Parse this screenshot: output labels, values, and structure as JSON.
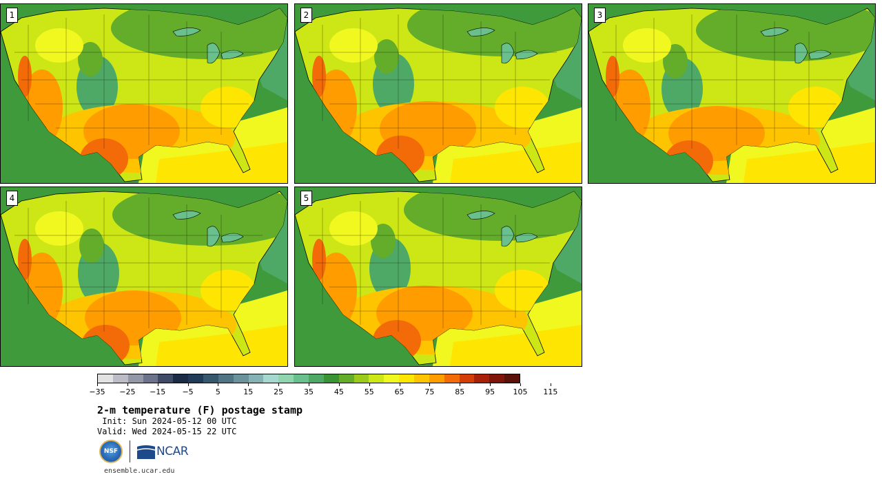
{
  "panels": [
    {
      "label": "1",
      "id": "p1",
      "variant": 0
    },
    {
      "label": "2",
      "id": "p2",
      "variant": 1
    },
    {
      "label": "3",
      "id": "p3",
      "variant": 2
    },
    {
      "label": "4",
      "id": "p4",
      "variant": 3
    },
    {
      "label": "5",
      "id": "p5",
      "variant": 4
    }
  ],
  "colorbar": {
    "colors": [
      "#e2e2e2",
      "#bcbcc6",
      "#9397a6",
      "#6b7289",
      "#3f4b66",
      "#1a2b45",
      "#1f3b57",
      "#36586c",
      "#4f7585",
      "#69929b",
      "#85b3b3",
      "#a5d9cf",
      "#8ed5b0",
      "#6ac08c",
      "#4fa966",
      "#3a9436",
      "#63ad2a",
      "#9acb1a",
      "#cde716",
      "#f1f820",
      "#ffe602",
      "#ffc400",
      "#ff9c00",
      "#f36a08",
      "#d43c08",
      "#a82008",
      "#7e1508",
      "#5a1208"
    ],
    "ticks": [
      "−35",
      "−25",
      "−15",
      "−5",
      "5",
      "15",
      "25",
      "35",
      "45",
      "55",
      "65",
      "75",
      "85",
      "95",
      "105",
      "115"
    ]
  },
  "title": "2-m temperature (F) postage stamp",
  "init": " Init: Sun 2024-05-12 00 UTC",
  "valid": "Valid: Wed 2024-05-15 22 UTC",
  "logos": {
    "nsf": "NSF",
    "ncar": "NCAR"
  },
  "site": "ensemble.ucar.edu"
}
